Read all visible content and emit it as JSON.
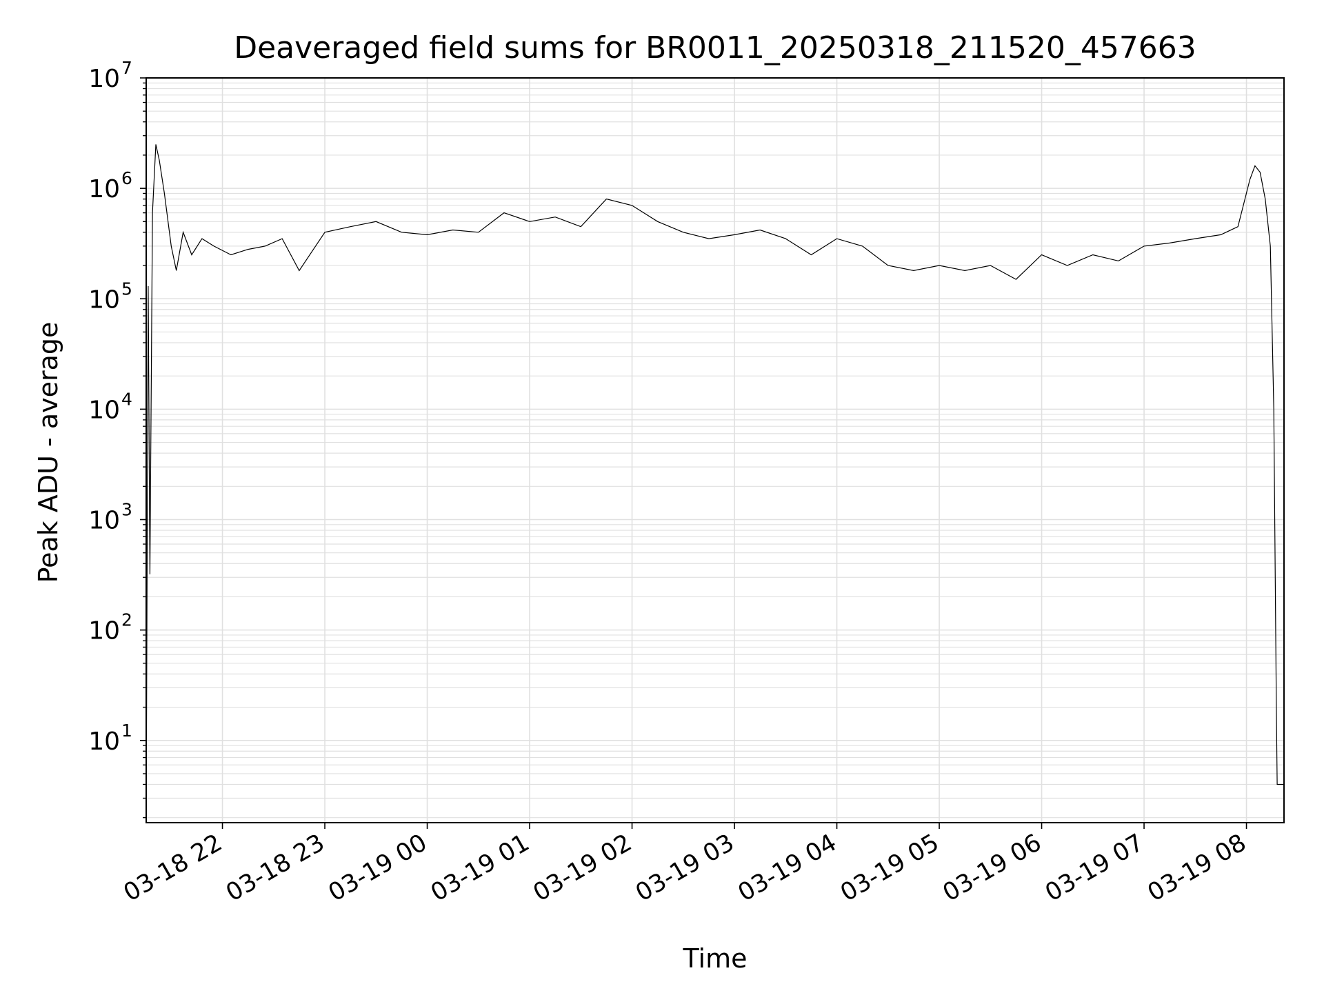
{
  "chart_data": {
    "type": "line",
    "title": "Deaveraged field sums for BR0011_20250318_211520_457663",
    "xlabel": "Time",
    "ylabel": "Peak ADU - average",
    "yscale": "log",
    "ylim": [
      1.8,
      10000000
    ],
    "xlim": [
      "2025-03-18T21:15:20",
      "2025-03-19T08:22:00"
    ],
    "grid": true,
    "line_color": "#000000",
    "grid_color": "#e0e0e0",
    "x_ticks": [
      {
        "value": "2025-03-18T22:00",
        "label": "03-18 22"
      },
      {
        "value": "2025-03-18T23:00",
        "label": "03-18 23"
      },
      {
        "value": "2025-03-19T00:00",
        "label": "03-19 00"
      },
      {
        "value": "2025-03-19T01:00",
        "label": "03-19 01"
      },
      {
        "value": "2025-03-19T02:00",
        "label": "03-19 02"
      },
      {
        "value": "2025-03-19T03:00",
        "label": "03-19 03"
      },
      {
        "value": "2025-03-19T04:00",
        "label": "03-19 04"
      },
      {
        "value": "2025-03-19T05:00",
        "label": "03-19 05"
      },
      {
        "value": "2025-03-19T06:00",
        "label": "03-19 06"
      },
      {
        "value": "2025-03-19T07:00",
        "label": "03-19 07"
      },
      {
        "value": "2025-03-19T08:00",
        "label": "03-19 08"
      }
    ],
    "y_ticks": [
      {
        "value": 10,
        "base": "10",
        "exp": "1"
      },
      {
        "value": 100,
        "base": "10",
        "exp": "2"
      },
      {
        "value": 1000,
        "base": "10",
        "exp": "3"
      },
      {
        "value": 10000,
        "base": "10",
        "exp": "4"
      },
      {
        "value": 100000,
        "base": "10",
        "exp": "5"
      },
      {
        "value": 1000000,
        "base": "10",
        "exp": "6"
      },
      {
        "value": 10000000,
        "base": "10",
        "exp": "7"
      }
    ],
    "series": [
      {
        "x": [
          "2025-03-18T21:15:20",
          "2025-03-18T21:16:30",
          "2025-03-18T21:17:30",
          "2025-03-18T21:19:00",
          "2025-03-18T21:21:00",
          "2025-03-18T21:23:00",
          "2025-03-18T21:26:00",
          "2025-03-18T21:30:00",
          "2025-03-18T21:33:00",
          "2025-03-18T21:37:00",
          "2025-03-18T21:42:00",
          "2025-03-18T21:48:00",
          "2025-03-18T21:55:00",
          "2025-03-18T22:05:00",
          "2025-03-18T22:15:00",
          "2025-03-18T22:25:00",
          "2025-03-18T22:35:00",
          "2025-03-18T22:45:00",
          "2025-03-18T23:00:00",
          "2025-03-18T23:15:00",
          "2025-03-18T23:30:00",
          "2025-03-18T23:45:00",
          "2025-03-19T00:00:00",
          "2025-03-19T00:15:00",
          "2025-03-19T00:30:00",
          "2025-03-19T00:45:00",
          "2025-03-19T01:00:00",
          "2025-03-19T01:15:00",
          "2025-03-19T01:30:00",
          "2025-03-19T01:45:00",
          "2025-03-19T02:00:00",
          "2025-03-19T02:15:00",
          "2025-03-19T02:30:00",
          "2025-03-19T02:45:00",
          "2025-03-19T03:00:00",
          "2025-03-19T03:15:00",
          "2025-03-19T03:30:00",
          "2025-03-19T03:45:00",
          "2025-03-19T04:00:00",
          "2025-03-19T04:15:00",
          "2025-03-19T04:30:00",
          "2025-03-19T04:45:00",
          "2025-03-19T05:00:00",
          "2025-03-19T05:15:00",
          "2025-03-19T05:30:00",
          "2025-03-19T05:45:00",
          "2025-03-19T06:00:00",
          "2025-03-19T06:15:00",
          "2025-03-19T06:30:00",
          "2025-03-19T06:45:00",
          "2025-03-19T07:00:00",
          "2025-03-19T07:15:00",
          "2025-03-19T07:30:00",
          "2025-03-19T07:45:00",
          "2025-03-19T07:55:00",
          "2025-03-19T08:02:00",
          "2025-03-19T08:05:00",
          "2025-03-19T08:08:00",
          "2025-03-19T08:11:00",
          "2025-03-19T08:14:00",
          "2025-03-19T08:16:00",
          "2025-03-19T08:17:30",
          "2025-03-19T08:18:00",
          "2025-03-19T08:22:00"
        ],
        "y": [
          2,
          130000,
          320,
          600000,
          2500000,
          1800000,
          900000,
          300000,
          180000,
          400000,
          250000,
          350000,
          300000,
          250000,
          280000,
          300000,
          350000,
          180000,
          400000,
          450000,
          500000,
          400000,
          380000,
          420000,
          400000,
          600000,
          500000,
          550000,
          450000,
          800000,
          700000,
          500000,
          400000,
          350000,
          380000,
          420000,
          350000,
          250000,
          350000,
          300000,
          200000,
          180000,
          200000,
          180000,
          200000,
          150000,
          250000,
          200000,
          250000,
          220000,
          300000,
          320000,
          350000,
          380000,
          450000,
          1200000,
          1600000,
          1400000,
          800000,
          300000,
          10000,
          20,
          4,
          4
        ]
      }
    ]
  }
}
